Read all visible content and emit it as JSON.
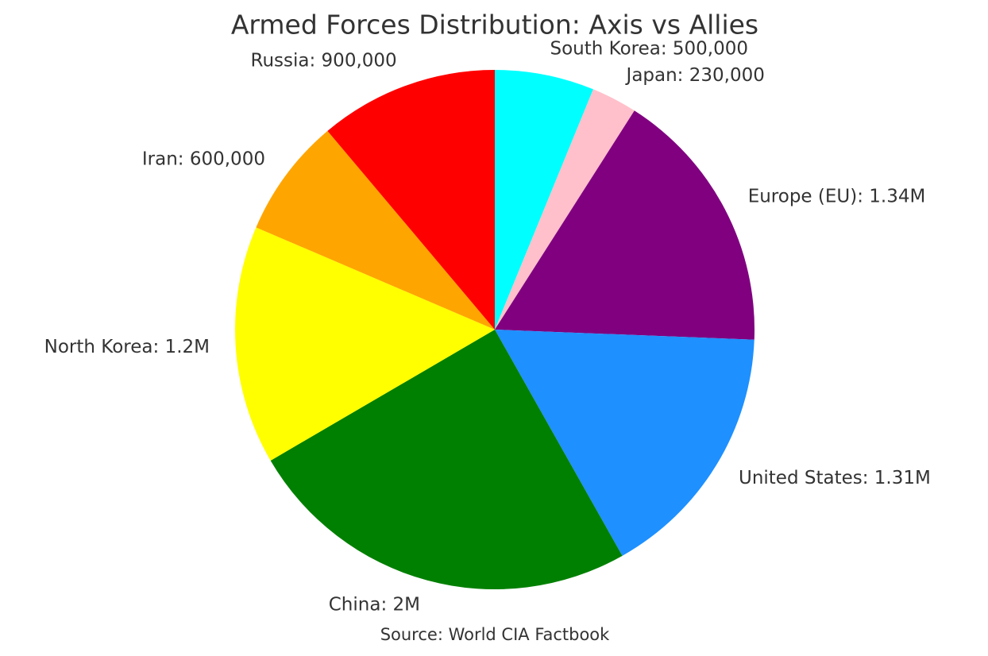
{
  "chart_data": {
    "type": "pie",
    "title": "Armed Forces Distribution: Axis vs Allies",
    "source": "Source: World CIA Factbook",
    "values": [
      500000,
      230000,
      1340000,
      1310000,
      2000000,
      1200000,
      600000,
      900000
    ],
    "value_labels": [
      "South Korea: 500,000",
      "Japan: 230,000",
      "Europe (EU): 1.34M",
      "United States: 1.31M",
      "China: 2M",
      "North Korea: 1.2M",
      "Iran: 600,000",
      "Russia: 900,000"
    ],
    "colors": [
      "#00ffff",
      "#ffc0cb",
      "#800080",
      "#1e90ff",
      "#008000",
      "#ffff00",
      "#ffa500",
      "#ff0000"
    ],
    "start_angle": 90,
    "direction": "clockwise"
  }
}
